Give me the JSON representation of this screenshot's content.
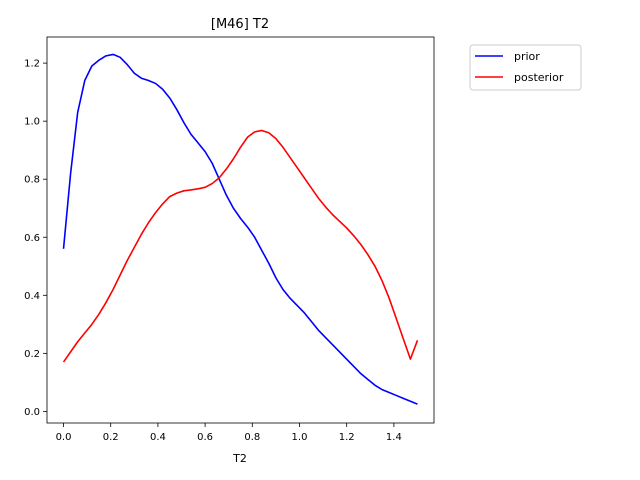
{
  "chart_data": {
    "type": "line",
    "title": "[M46] T2",
    "xlabel": "T2",
    "ylabel": "",
    "xlim": [
      -0.07,
      1.57
    ],
    "ylim": [
      -0.04,
      1.29
    ],
    "xticks": [
      0.0,
      0.2,
      0.4,
      0.6,
      0.8,
      1.0,
      1.2,
      1.4
    ],
    "xtick_labels": [
      "0.0",
      "0.2",
      "0.4",
      "0.6",
      "0.8",
      "1.0",
      "1.2",
      "1.4"
    ],
    "yticks": [
      0.0,
      0.2,
      0.4,
      0.6,
      0.8,
      1.0,
      1.2
    ],
    "ytick_labels": [
      "0.0",
      "0.2",
      "0.4",
      "0.6",
      "0.8",
      "1.0",
      "1.2"
    ],
    "grid": false,
    "legend_position": "outside-top-right",
    "series": [
      {
        "name": "prior",
        "color": "#0000ff",
        "x": [
          0.0,
          0.03,
          0.06,
          0.09,
          0.12,
          0.15,
          0.18,
          0.21,
          0.24,
          0.27,
          0.3,
          0.33,
          0.36,
          0.39,
          0.42,
          0.45,
          0.48,
          0.51,
          0.54,
          0.57,
          0.6,
          0.63,
          0.66,
          0.69,
          0.72,
          0.75,
          0.78,
          0.81,
          0.84,
          0.87,
          0.9,
          0.93,
          0.96,
          0.99,
          1.02,
          1.05,
          1.08,
          1.11,
          1.14,
          1.17,
          1.2,
          1.23,
          1.26,
          1.29,
          1.32,
          1.35,
          1.38,
          1.41,
          1.44,
          1.47,
          1.5
        ],
        "y": [
          0.56,
          0.82,
          1.03,
          1.14,
          1.19,
          1.21,
          1.225,
          1.23,
          1.22,
          1.195,
          1.165,
          1.148,
          1.14,
          1.13,
          1.11,
          1.08,
          1.04,
          0.995,
          0.955,
          0.925,
          0.895,
          0.855,
          0.8,
          0.745,
          0.7,
          0.665,
          0.635,
          0.6,
          0.555,
          0.51,
          0.46,
          0.42,
          0.39,
          0.365,
          0.34,
          0.31,
          0.28,
          0.255,
          0.23,
          0.205,
          0.18,
          0.155,
          0.13,
          0.11,
          0.09,
          0.075,
          0.065,
          0.055,
          0.045,
          0.035,
          0.025
        ]
      },
      {
        "name": "posterior",
        "color": "#ff0000",
        "x": [
          0.0,
          0.03,
          0.06,
          0.09,
          0.12,
          0.15,
          0.18,
          0.21,
          0.24,
          0.27,
          0.3,
          0.33,
          0.36,
          0.39,
          0.42,
          0.45,
          0.48,
          0.51,
          0.54,
          0.57,
          0.6,
          0.63,
          0.66,
          0.69,
          0.72,
          0.75,
          0.78,
          0.81,
          0.84,
          0.87,
          0.9,
          0.93,
          0.96,
          0.99,
          1.02,
          1.05,
          1.08,
          1.11,
          1.14,
          1.17,
          1.2,
          1.23,
          1.26,
          1.29,
          1.32,
          1.35,
          1.38,
          1.41,
          1.44,
          1.47,
          1.5
        ],
        "y": [
          0.17,
          0.205,
          0.24,
          0.27,
          0.3,
          0.335,
          0.375,
          0.42,
          0.47,
          0.52,
          0.565,
          0.61,
          0.65,
          0.685,
          0.715,
          0.74,
          0.752,
          0.76,
          0.763,
          0.767,
          0.772,
          0.785,
          0.805,
          0.835,
          0.87,
          0.91,
          0.945,
          0.963,
          0.968,
          0.96,
          0.94,
          0.91,
          0.875,
          0.84,
          0.805,
          0.77,
          0.735,
          0.705,
          0.678,
          0.655,
          0.632,
          0.605,
          0.575,
          0.54,
          0.5,
          0.45,
          0.39,
          0.32,
          0.25,
          0.18,
          0.245
        ]
      }
    ]
  }
}
